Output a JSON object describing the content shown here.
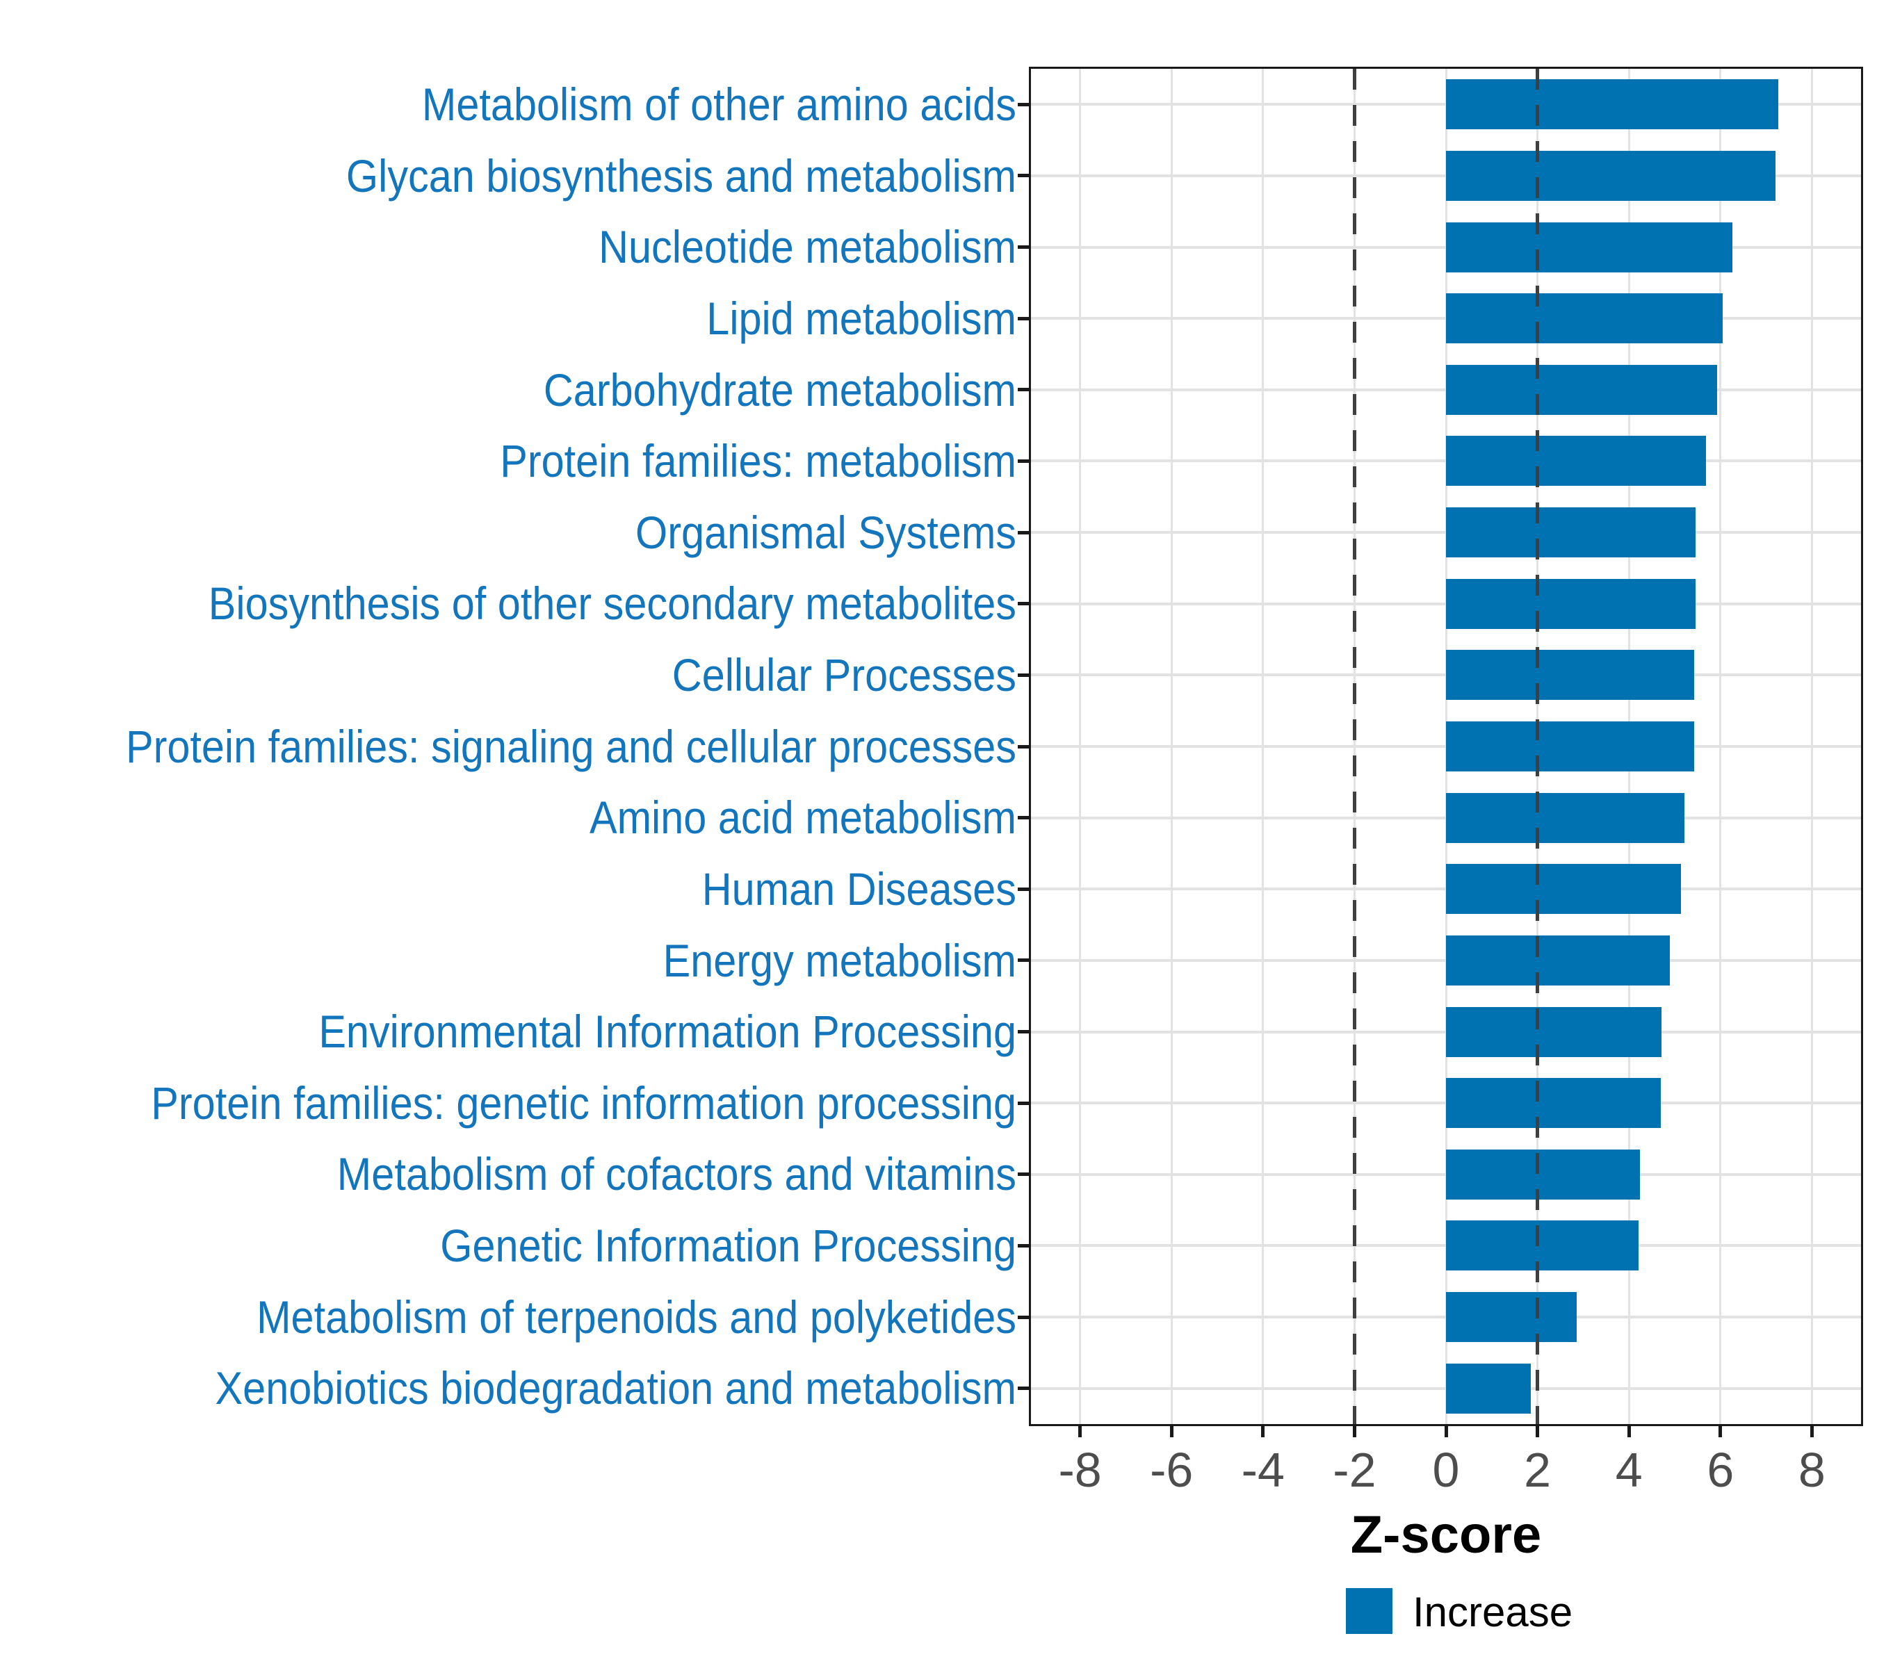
{
  "chart_data": {
    "type": "bar",
    "orientation": "horizontal",
    "title": "",
    "xlabel": "Z-score",
    "ylabel": "",
    "categories": [
      "Metabolism of other amino acids",
      "Glycan biosynthesis and metabolism",
      "Nucleotide metabolism",
      "Lipid metabolism",
      "Carbohydrate metabolism",
      "Protein families: metabolism",
      "Organismal Systems",
      "Biosynthesis of other secondary metabolites",
      "Cellular Processes",
      "Protein families: signaling and cellular processes",
      "Amino acid metabolism",
      "Human Diseases",
      "Energy metabolism",
      "Environmental Information Processing",
      "Protein families: genetic information processing",
      "Metabolism of cofactors and vitamins",
      "Genetic Information Processing",
      "Metabolism of terpenoids and polyketides",
      "Xenobiotics biodegradation and metabolism"
    ],
    "series": [
      {
        "name": "Increase",
        "values": [
          7.27,
          7.21,
          6.26,
          6.05,
          5.93,
          5.69,
          5.45,
          5.45,
          5.42,
          5.42,
          5.21,
          5.14,
          4.9,
          4.71,
          4.7,
          4.24,
          4.21,
          2.86,
          1.85
        ]
      }
    ],
    "xlim": [
      -9.07,
      9.07
    ],
    "x_ticks": [
      "-8",
      "-6",
      "-4",
      "-2",
      "0",
      "2",
      "4",
      "6",
      "8"
    ],
    "x_tick_values": [
      -8,
      -6,
      -4,
      -2,
      0,
      2,
      4,
      6,
      8
    ],
    "reference_lines": [
      -2,
      2
    ],
    "grid": true,
    "legend_position": "bottom",
    "legend": {
      "label": "Increase"
    },
    "colors": {
      "bar": "#0072B2",
      "category_label": "#1375BC",
      "tick_label": "#4D4D4D",
      "axis_title": "#000000",
      "reference_line": "#3F3F3F",
      "gridline": "#E2E2E2",
      "panel_border": "#1A1A1A",
      "legend_swatch": "#0072B2",
      "legend_text": "#000000"
    }
  }
}
